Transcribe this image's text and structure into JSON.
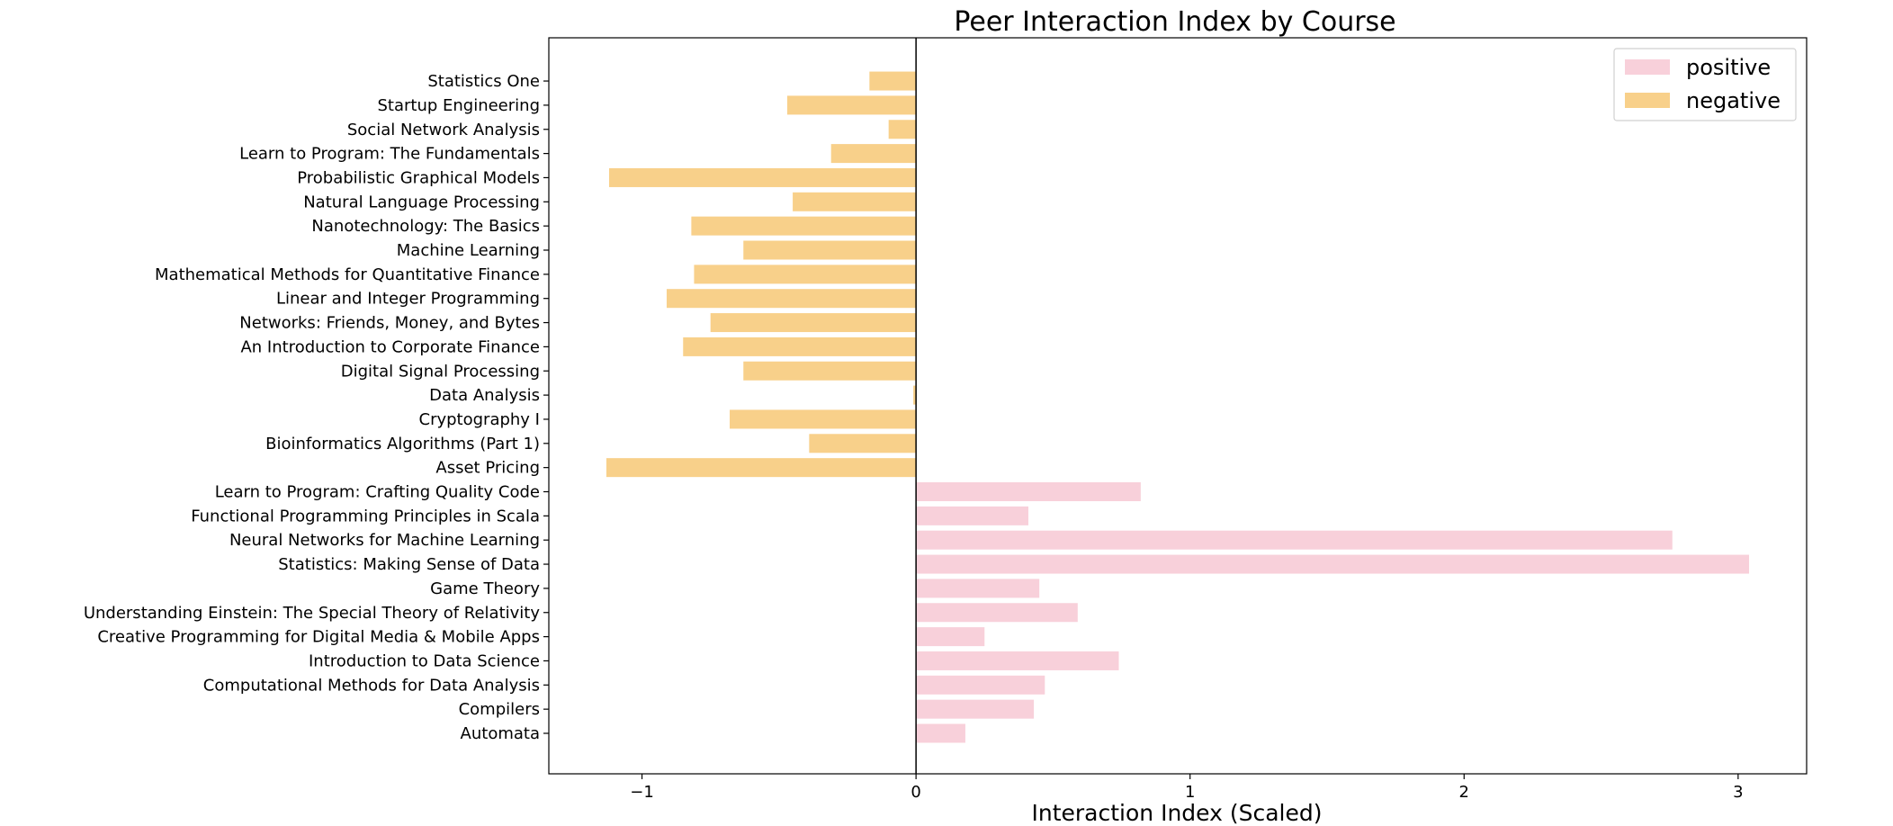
{
  "chart_data": {
    "type": "bar",
    "orientation": "horizontal",
    "title": "Peer Interaction Index by Course",
    "xlabel": "Interaction Index (Scaled)",
    "ylabel": "",
    "xlim": [
      -1.34,
      3.25
    ],
    "xticks": [
      -1,
      0,
      1,
      2,
      3
    ],
    "xtick_labels": [
      "−1",
      "0",
      "1",
      "2",
      "3"
    ],
    "grid": false,
    "legend_position": "top-right",
    "legend": [
      {
        "name": "positive",
        "color": "#f8d0da"
      },
      {
        "name": "negative",
        "color": "#f8d08a"
      }
    ],
    "categories": [
      "Automata",
      "Compilers",
      "Computational Methods for Data Analysis",
      "Introduction to Data Science",
      "Creative Programming for Digital Media & Mobile Apps",
      "Understanding Einstein: The Special Theory of Relativity",
      "Game Theory",
      "Statistics: Making Sense of Data",
      "Neural Networks for Machine Learning",
      "Functional Programming Principles in Scala",
      "Learn to Program: Crafting Quality Code",
      "Asset Pricing",
      "Bioinformatics Algorithms (Part 1)",
      "Cryptography I",
      "Data Analysis",
      "Digital Signal Processing",
      "An Introduction to Corporate Finance",
      "Networks: Friends, Money, and Bytes",
      "Linear and Integer Programming",
      "Mathematical Methods for Quantitative Finance",
      "Machine Learning",
      "Nanotechnology: The Basics",
      "Natural Language Processing",
      "Probabilistic Graphical Models",
      "Learn to Program: The Fundamentals",
      "Social Network Analysis",
      "Startup Engineering",
      "Statistics One"
    ],
    "values": [
      0.18,
      0.43,
      0.47,
      0.74,
      0.25,
      0.59,
      0.45,
      3.04,
      2.76,
      0.41,
      0.82,
      -1.13,
      -0.39,
      -0.68,
      -0.01,
      -0.63,
      -0.85,
      -0.75,
      -0.91,
      -0.81,
      -0.63,
      -0.82,
      -0.45,
      -1.12,
      -0.31,
      -0.1,
      -0.47,
      -0.17
    ]
  }
}
